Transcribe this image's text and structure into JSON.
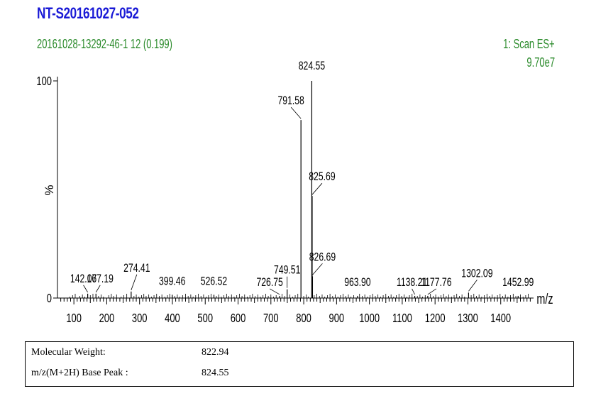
{
  "header": {
    "title": "NT-S20161027-052",
    "subtitle": "20161028-13292-46-1 12 (0.199)",
    "scan_label": "1: Scan ES+",
    "scan_intensity": "9.70e7"
  },
  "chart_data": {
    "type": "bar",
    "xlabel": "m/z",
    "ylabel": "%",
    "xlim": [
      50,
      1500
    ],
    "ylim": [
      0,
      100
    ],
    "y_ticks": [
      "0",
      "100"
    ],
    "x_ticks": [
      100,
      200,
      300,
      400,
      500,
      600,
      700,
      800,
      900,
      1000,
      1100,
      1200,
      1300,
      1400
    ],
    "peaks": [
      {
        "x": 142.07,
        "y": 2,
        "label": "142.07"
      },
      {
        "x": 167.19,
        "y": 2,
        "label": "167.19"
      },
      {
        "x": 274.41,
        "y": 3,
        "label": "274.41"
      },
      {
        "x": 399.46,
        "y": 1.5,
        "label": "399.46"
      },
      {
        "x": 526.52,
        "y": 1.5,
        "label": "526.52"
      },
      {
        "x": 726.75,
        "y": 1,
        "label": "726.75"
      },
      {
        "x": 749.51,
        "y": 4,
        "label": "749.51"
      },
      {
        "x": 791.58,
        "y": 82,
        "label": "791.58"
      },
      {
        "x": 824.55,
        "y": 100,
        "label": "824.55"
      },
      {
        "x": 825.69,
        "y": 47,
        "label": "825.69"
      },
      {
        "x": 826.69,
        "y": 10,
        "label": "826.69"
      },
      {
        "x": 963.9,
        "y": 1,
        "label": "963.90"
      },
      {
        "x": 1138.21,
        "y": 1,
        "label": "1138.21"
      },
      {
        "x": 1177.76,
        "y": 1,
        "label": "1177.76"
      },
      {
        "x": 1302.09,
        "y": 2.5,
        "label": "1302.09"
      },
      {
        "x": 1452.99,
        "y": 1,
        "label": "1452.99"
      }
    ]
  },
  "info": {
    "rows": [
      {
        "label": "Molecular Weight:",
        "value": "822.94"
      },
      {
        "label": "m/z(M+2H) Base Peak :",
        "value": "824.55"
      }
    ]
  }
}
